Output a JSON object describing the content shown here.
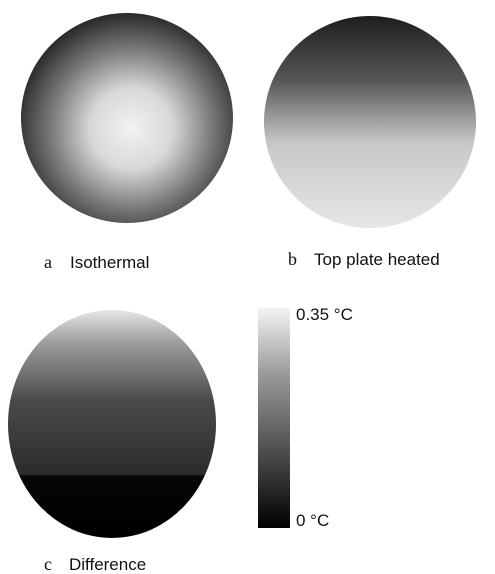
{
  "panels": [
    {
      "letter": "a",
      "caption": "Isothermal"
    },
    {
      "letter": "b",
      "caption": "Top plate heated"
    },
    {
      "letter": "c",
      "caption": "Difference"
    }
  ],
  "colorbar": {
    "max_label": "0.35 °C",
    "min_label": "0 °C"
  }
}
